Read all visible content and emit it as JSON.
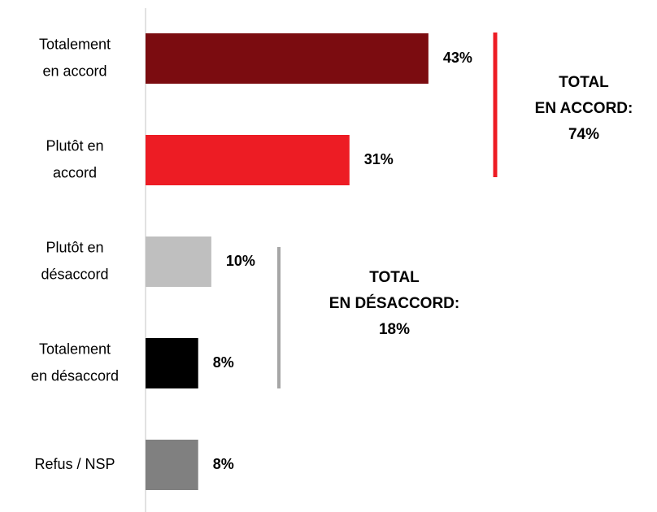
{
  "chart_data": {
    "type": "hbar",
    "categories": [
      "Totalement\nen accord",
      "Plutôt en\naccord",
      "Plutôt en\ndésaccord",
      "Totalement\nen désaccord",
      "Refus / NSP"
    ],
    "values": [
      43,
      31,
      10,
      8,
      8
    ],
    "value_labels": [
      "43%",
      "31%",
      "10%",
      "8%",
      "8%"
    ],
    "colors": [
      "#7b0c10",
      "#ed1c24",
      "#bfbfbf",
      "#000000",
      "#808080"
    ],
    "annotations": [
      {
        "text": "TOTAL\nEN ACCORD:\n74%",
        "color": "#ed1c24"
      },
      {
        "text": "TOTAL\nEN DÉSACCORD:\n18%",
        "color": "#a6a6a6"
      }
    ]
  }
}
